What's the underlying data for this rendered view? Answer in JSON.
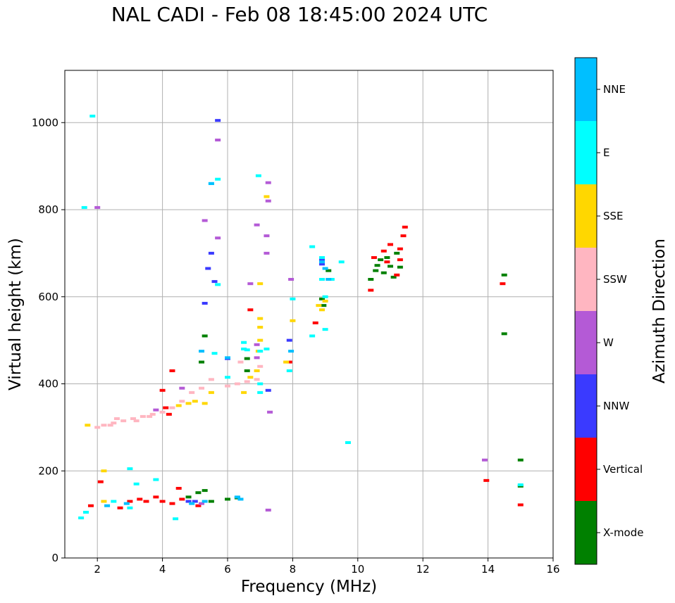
{
  "chart_data": {
    "type": "scatter",
    "title": "NAL CADI - Feb 08 18:45:00 2024 UTC",
    "xlabel": "Frequency (MHz)",
    "ylabel": "Virtual height (km)",
    "xlim": [
      1,
      16
    ],
    "ylim": [
      0,
      1120
    ],
    "xticks": [
      2,
      4,
      6,
      8,
      10,
      12,
      14,
      16
    ],
    "yticks": [
      0,
      200,
      400,
      600,
      800,
      1000
    ],
    "grid": true,
    "colorbar": {
      "label": "Azimuth Direction",
      "categories": [
        {
          "name": "X-mode",
          "color": "#008000"
        },
        {
          "name": "Vertical",
          "color": "#ff0000"
        },
        {
          "name": "NNW",
          "color": "#3a3aff"
        },
        {
          "name": "W",
          "color": "#b45ad6"
        },
        {
          "name": "SSW",
          "color": "#ffb6c1"
        },
        {
          "name": "SSE",
          "color": "#ffd700"
        },
        {
          "name": "E",
          "color": "#00ffff"
        },
        {
          "name": "NNE",
          "color": "#00bfff"
        }
      ]
    },
    "series": [
      {
        "name": "X-mode",
        "points": [
          [
            4.8,
            140
          ],
          [
            5.1,
            150
          ],
          [
            5.3,
            155
          ],
          [
            5.5,
            130
          ],
          [
            6.0,
            135
          ],
          [
            6.3,
            138
          ],
          [
            6.6,
            458
          ],
          [
            6.6,
            430
          ],
          [
            8.9,
            595
          ],
          [
            8.95,
            580
          ],
          [
            9.1,
            660
          ],
          [
            10.4,
            640
          ],
          [
            10.55,
            660
          ],
          [
            10.6,
            672
          ],
          [
            10.7,
            685
          ],
          [
            10.8,
            655
          ],
          [
            10.9,
            690
          ],
          [
            11.0,
            670
          ],
          [
            11.1,
            645
          ],
          [
            11.2,
            700
          ],
          [
            11.3,
            668
          ],
          [
            14.5,
            650
          ],
          [
            14.5,
            515
          ],
          [
            15.0,
            165
          ],
          [
            15.0,
            225
          ],
          [
            5.3,
            510
          ],
          [
            5.2,
            450
          ]
        ]
      },
      {
        "name": "Vertical",
        "points": [
          [
            1.8,
            120
          ],
          [
            2.1,
            175
          ],
          [
            2.7,
            115
          ],
          [
            3.0,
            130
          ],
          [
            3.3,
            135
          ],
          [
            3.5,
            130
          ],
          [
            3.8,
            140
          ],
          [
            4.0,
            130
          ],
          [
            4.3,
            125
          ],
          [
            4.6,
            135
          ],
          [
            4.1,
            345
          ],
          [
            4.0,
            385
          ],
          [
            4.3,
            430
          ],
          [
            6.7,
            570
          ],
          [
            7.9,
            450
          ],
          [
            8.7,
            540
          ],
          [
            10.4,
            615
          ],
          [
            10.5,
            690
          ],
          [
            10.8,
            705
          ],
          [
            10.9,
            680
          ],
          [
            11.0,
            720
          ],
          [
            11.2,
            650
          ],
          [
            11.3,
            685
          ],
          [
            11.4,
            740
          ],
          [
            11.45,
            760
          ],
          [
            11.3,
            710
          ],
          [
            14.45,
            630
          ],
          [
            13.95,
            178
          ],
          [
            15.0,
            122
          ],
          [
            5.1,
            120
          ],
          [
            4.5,
            160
          ],
          [
            4.2,
            330
          ]
        ]
      },
      {
        "name": "NNW",
        "points": [
          [
            5.7,
            1005
          ],
          [
            5.5,
            700
          ],
          [
            8.9,
            685
          ],
          [
            8.9,
            675
          ],
          [
            7.9,
            500
          ],
          [
            6.0,
            458
          ],
          [
            4.8,
            130
          ],
          [
            5.0,
            130
          ],
          [
            5.3,
            585
          ],
          [
            5.4,
            665
          ],
          [
            5.6,
            635
          ],
          [
            7.25,
            385
          ]
        ]
      },
      {
        "name": "W",
        "points": [
          [
            2.0,
            805
          ],
          [
            5.7,
            960
          ],
          [
            7.25,
            862
          ],
          [
            7.25,
            820
          ],
          [
            6.9,
            765
          ],
          [
            7.2,
            740
          ],
          [
            7.2,
            700
          ],
          [
            5.7,
            735
          ],
          [
            5.3,
            775
          ],
          [
            6.7,
            630
          ],
          [
            6.9,
            490
          ],
          [
            7.25,
            110
          ],
          [
            7.3,
            335
          ],
          [
            13.9,
            225
          ],
          [
            5.2,
            125
          ],
          [
            3.8,
            340
          ],
          [
            4.6,
            390
          ],
          [
            6.9,
            460
          ],
          [
            7.95,
            640
          ]
        ]
      },
      {
        "name": "SSW",
        "points": [
          [
            2.2,
            305
          ],
          [
            2.5,
            310
          ],
          [
            2.8,
            315
          ],
          [
            3.1,
            320
          ],
          [
            3.4,
            325
          ],
          [
            3.7,
            330
          ],
          [
            4.0,
            335
          ],
          [
            4.3,
            345
          ],
          [
            4.6,
            360
          ],
          [
            4.9,
            380
          ],
          [
            5.2,
            390
          ],
          [
            6.0,
            395
          ],
          [
            6.3,
            400
          ],
          [
            6.6,
            405
          ],
          [
            6.9,
            410
          ],
          [
            7.0,
            440
          ],
          [
            2.0,
            300
          ],
          [
            2.4,
            305
          ],
          [
            3.2,
            315
          ],
          [
            5.5,
            410
          ],
          [
            6.4,
            450
          ],
          [
            7.8,
            450
          ],
          [
            2.6,
            320
          ],
          [
            3.6,
            325
          ]
        ]
      },
      {
        "name": "SSE",
        "points": [
          [
            1.7,
            305
          ],
          [
            2.2,
            200
          ],
          [
            2.2,
            130
          ],
          [
            4.5,
            350
          ],
          [
            4.8,
            355
          ],
          [
            5.0,
            360
          ],
          [
            5.3,
            355
          ],
          [
            5.5,
            380
          ],
          [
            6.5,
            380
          ],
          [
            6.7,
            415
          ],
          [
            6.9,
            430
          ],
          [
            6.95,
            475
          ],
          [
            7.0,
            500
          ],
          [
            7.0,
            530
          ],
          [
            7.0,
            550
          ],
          [
            7.2,
            830
          ],
          [
            7.0,
            630
          ],
          [
            8.0,
            545
          ],
          [
            8.8,
            580
          ],
          [
            8.9,
            570
          ],
          [
            7.8,
            450
          ],
          [
            9.0,
            590
          ]
        ]
      },
      {
        "name": "E",
        "points": [
          [
            1.85,
            1015
          ],
          [
            1.6,
            805
          ],
          [
            5.5,
            860
          ],
          [
            5.7,
            870
          ],
          [
            6.95,
            878
          ],
          [
            5.7,
            628
          ],
          [
            5.6,
            470
          ],
          [
            6.0,
            415
          ],
          [
            6.5,
            480
          ],
          [
            7.0,
            475
          ],
          [
            7.2,
            480
          ],
          [
            7.0,
            400
          ],
          [
            7.0,
            380
          ],
          [
            7.9,
            430
          ],
          [
            8.0,
            595
          ],
          [
            8.6,
            715
          ],
          [
            8.6,
            510
          ],
          [
            8.9,
            640
          ],
          [
            9.0,
            600
          ],
          [
            9.0,
            525
          ],
          [
            9.2,
            640
          ],
          [
            9.5,
            680
          ],
          [
            9.7,
            265
          ],
          [
            3.0,
            205
          ],
          [
            3.2,
            170
          ],
          [
            3.8,
            180
          ],
          [
            4.4,
            90
          ],
          [
            1.5,
            92
          ],
          [
            1.65,
            105
          ],
          [
            2.5,
            130
          ],
          [
            3.0,
            115
          ],
          [
            15.0,
            168
          ],
          [
            6.6,
            478
          ],
          [
            6.5,
            495
          ],
          [
            8.9,
            690
          ]
        ]
      },
      {
        "name": "NNE",
        "points": [
          [
            5.5,
            860
          ],
          [
            8.9,
            680
          ],
          [
            9.1,
            640
          ],
          [
            7.95,
            475
          ],
          [
            6.0,
            460
          ],
          [
            5.3,
            130
          ],
          [
            4.9,
            125
          ],
          [
            6.3,
            140
          ],
          [
            6.4,
            135
          ],
          [
            2.9,
            125
          ],
          [
            2.3,
            120
          ],
          [
            5.2,
            475
          ],
          [
            9.0,
            665
          ]
        ]
      }
    ]
  }
}
